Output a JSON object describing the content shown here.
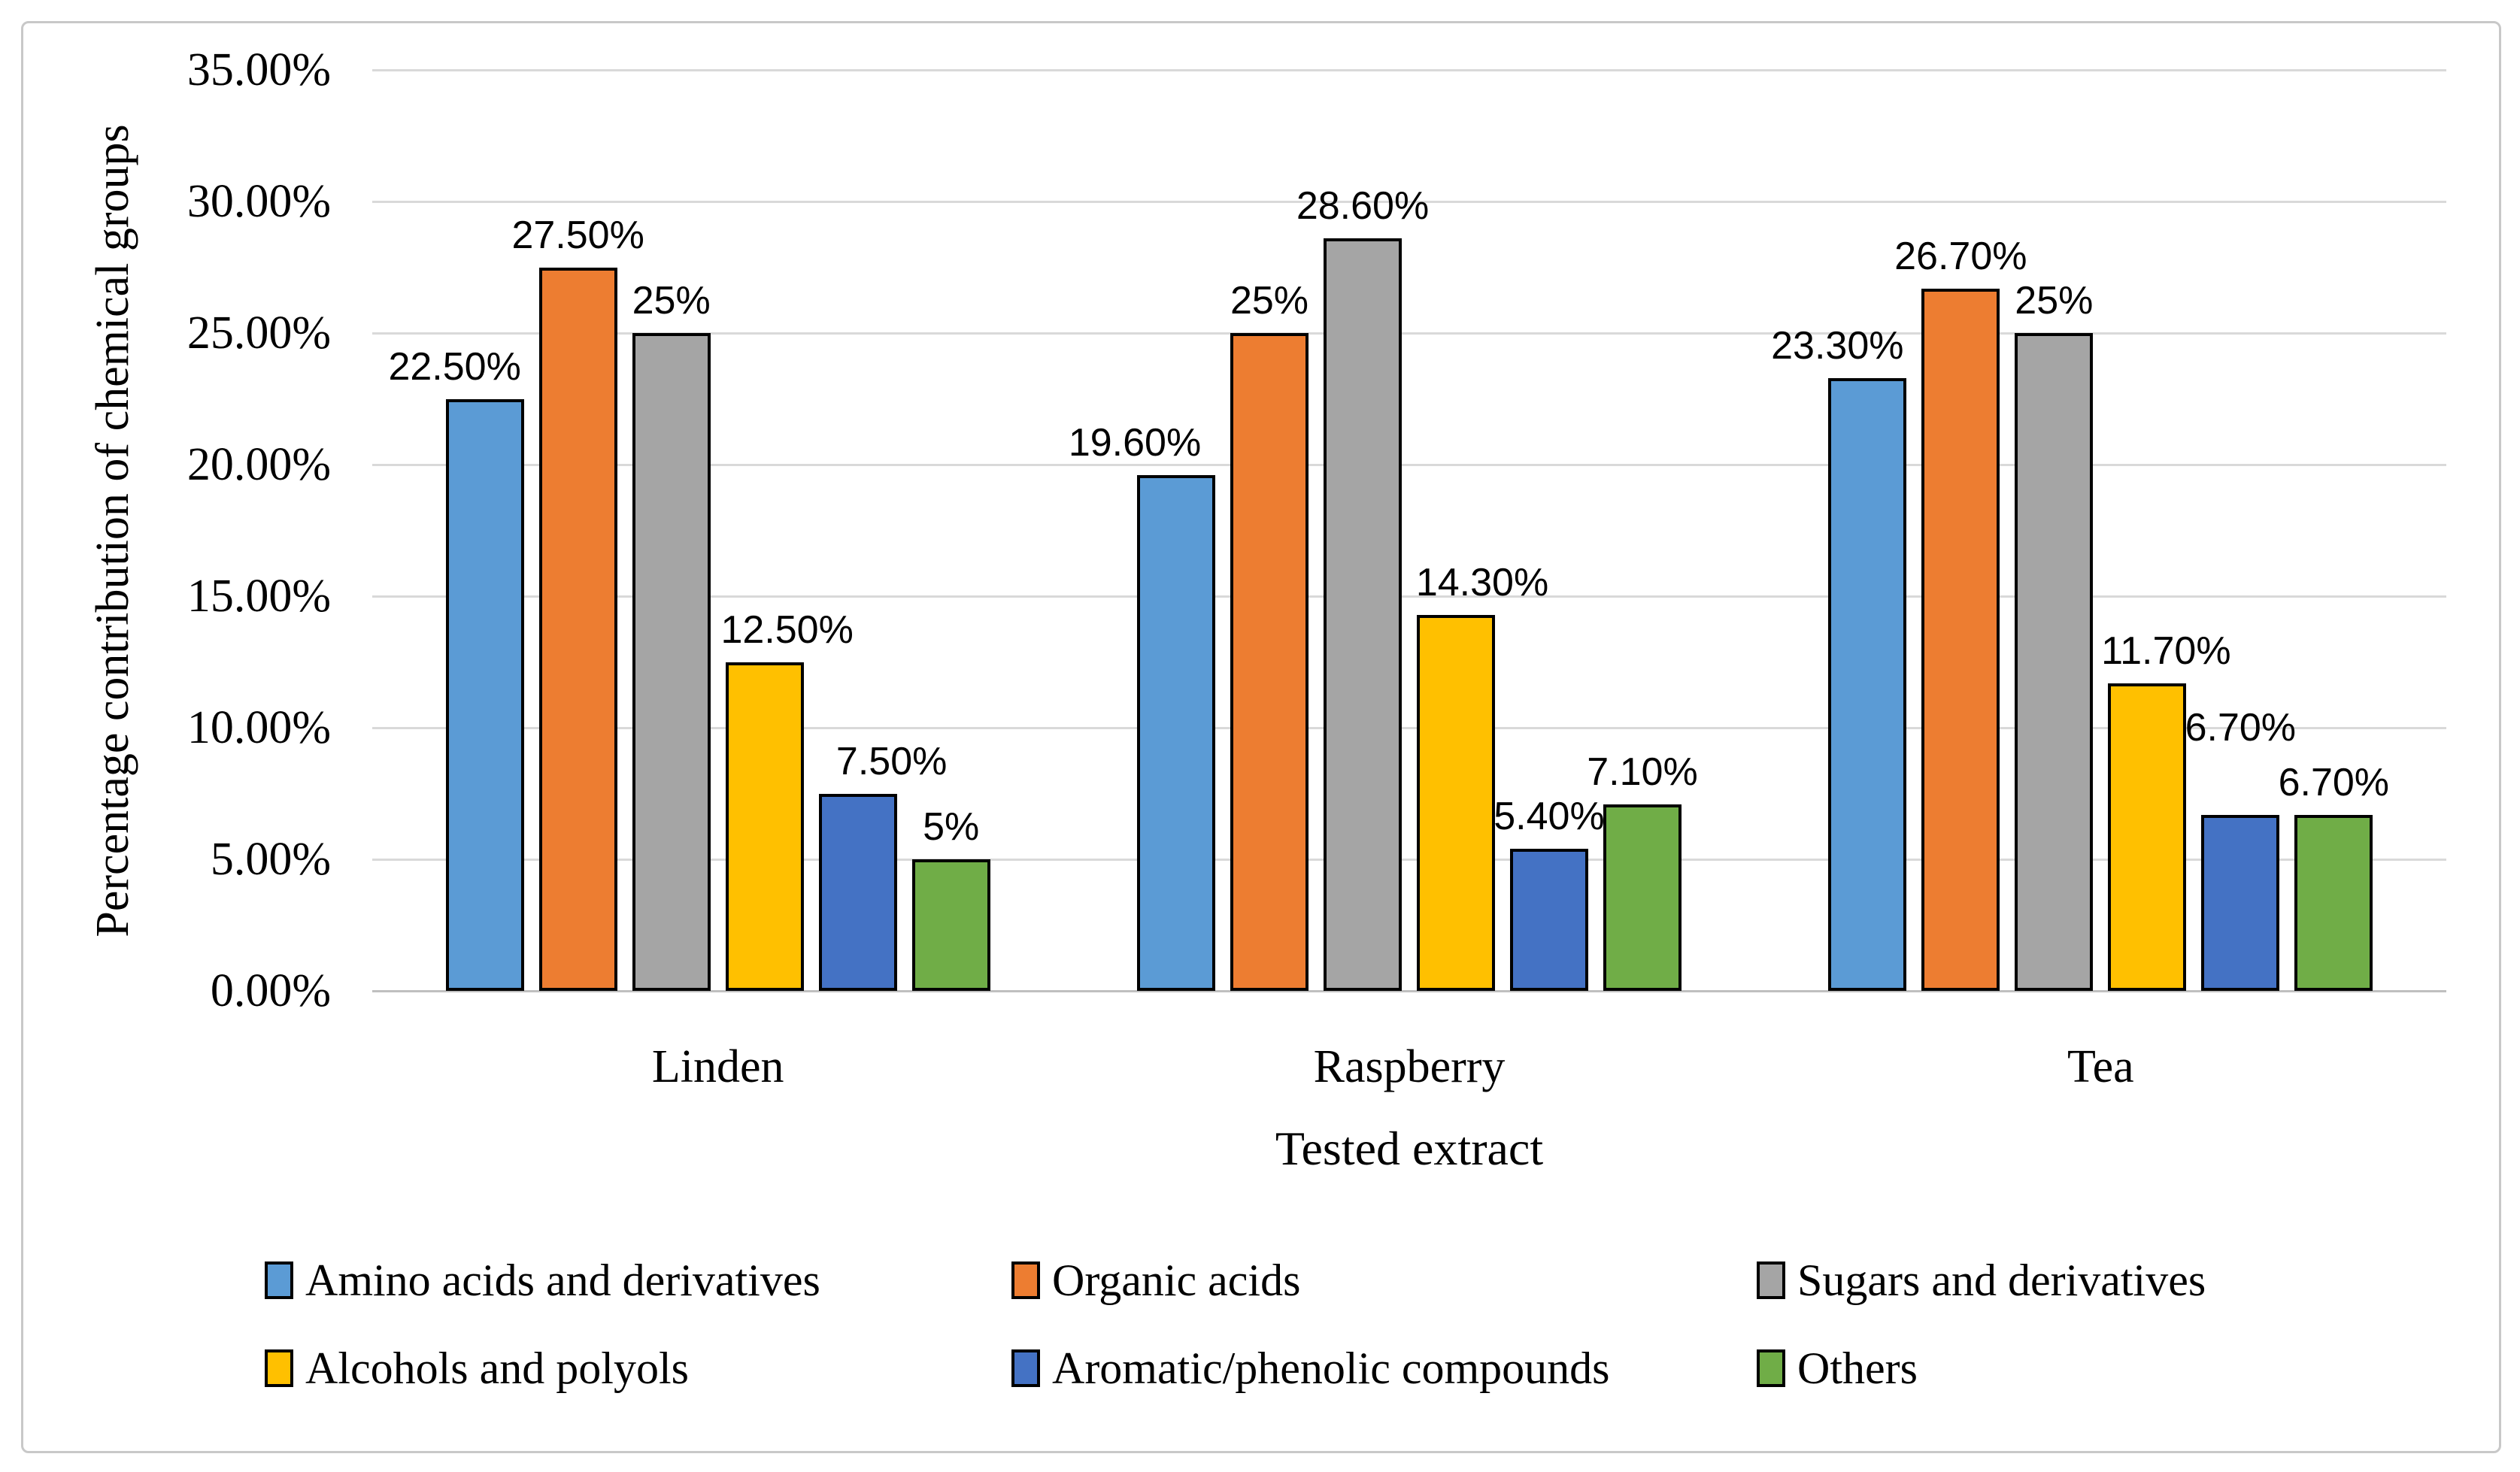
{
  "figure": {
    "background": "#FFFFFF",
    "border_color": "#C8C8C8"
  },
  "chart_data": {
    "type": "bar",
    "title": "",
    "xlabel": "Tested extract",
    "ylabel": "Percentage contribution of chemical groups",
    "categories": [
      "Linden",
      "Raspberry",
      "Tea"
    ],
    "ylim": [
      0,
      35
    ],
    "grid": true,
    "legend_position": "bottom",
    "yticks": [
      {
        "value": 0,
        "label": "0.00%"
      },
      {
        "value": 5,
        "label": "5.00%"
      },
      {
        "value": 10,
        "label": "10.00%"
      },
      {
        "value": 15,
        "label": "15.00%"
      },
      {
        "value": 20,
        "label": "20.00%"
      },
      {
        "value": 25,
        "label": "25.00%"
      },
      {
        "value": 30,
        "label": "30.00%"
      },
      {
        "value": 35,
        "label": "35.00%"
      }
    ],
    "series": [
      {
        "name": "Amino acids and derivatives",
        "color": "#5B9BD5",
        "values": [
          22.5,
          19.6,
          23.3
        ],
        "labels": [
          "22.50%",
          "19.60%",
          "23.30%"
        ],
        "label_offsets": [
          [
            -40,
            0
          ],
          [
            -55,
            0
          ],
          [
            -40,
            0
          ]
        ]
      },
      {
        "name": "Organic acids",
        "color": "#ED7D31",
        "values": [
          27.5,
          25,
          26.7
        ],
        "labels": [
          "27.50%",
          "25%",
          "26.70%"
        ],
        "label_offsets": [
          [
            0,
            0
          ],
          [
            0,
            0
          ],
          [
            0,
            0
          ]
        ]
      },
      {
        "name": "Sugars and derivatives",
        "color": "#A5A5A5",
        "values": [
          25,
          28.6,
          25
        ],
        "labels": [
          "25%",
          "28.60%",
          "25%"
        ],
        "label_offsets": [
          [
            0,
            0
          ],
          [
            0,
            0
          ],
          [
            0,
            0
          ]
        ]
      },
      {
        "name": "Alcohols and polyols",
        "color": "#FFC000",
        "values": [
          12.5,
          14.3,
          11.7
        ],
        "labels": [
          "12.50%",
          "14.30%",
          "11.70%"
        ],
        "label_offsets": [
          [
            30,
            0
          ],
          [
            35,
            0
          ],
          [
            25,
            0
          ]
        ]
      },
      {
        "name": "Aromatic/phenolic compounds",
        "color": "#4472C4",
        "values": [
          7.5,
          5.4,
          6.7
        ],
        "labels": [
          "7.50%",
          "5.40%",
          "6.70%"
        ],
        "label_offsets": [
          [
            45,
            0
          ],
          [
            0,
            0
          ],
          [
            0,
            -73
          ]
        ]
      },
      {
        "name": "Others",
        "color": "#70AD47",
        "values": [
          5,
          7.1,
          6.7
        ],
        "labels": [
          "5%",
          "7.10%",
          "6.70%"
        ],
        "label_offsets": [
          [
            0,
            0
          ],
          [
            0,
            0
          ],
          [
            0,
            0
          ]
        ]
      }
    ],
    "style_colors": {
      "gridline": "#D9D9D9",
      "axis_line": "#BFBFBF",
      "bar_border": "#000000",
      "text": "#000000"
    }
  }
}
